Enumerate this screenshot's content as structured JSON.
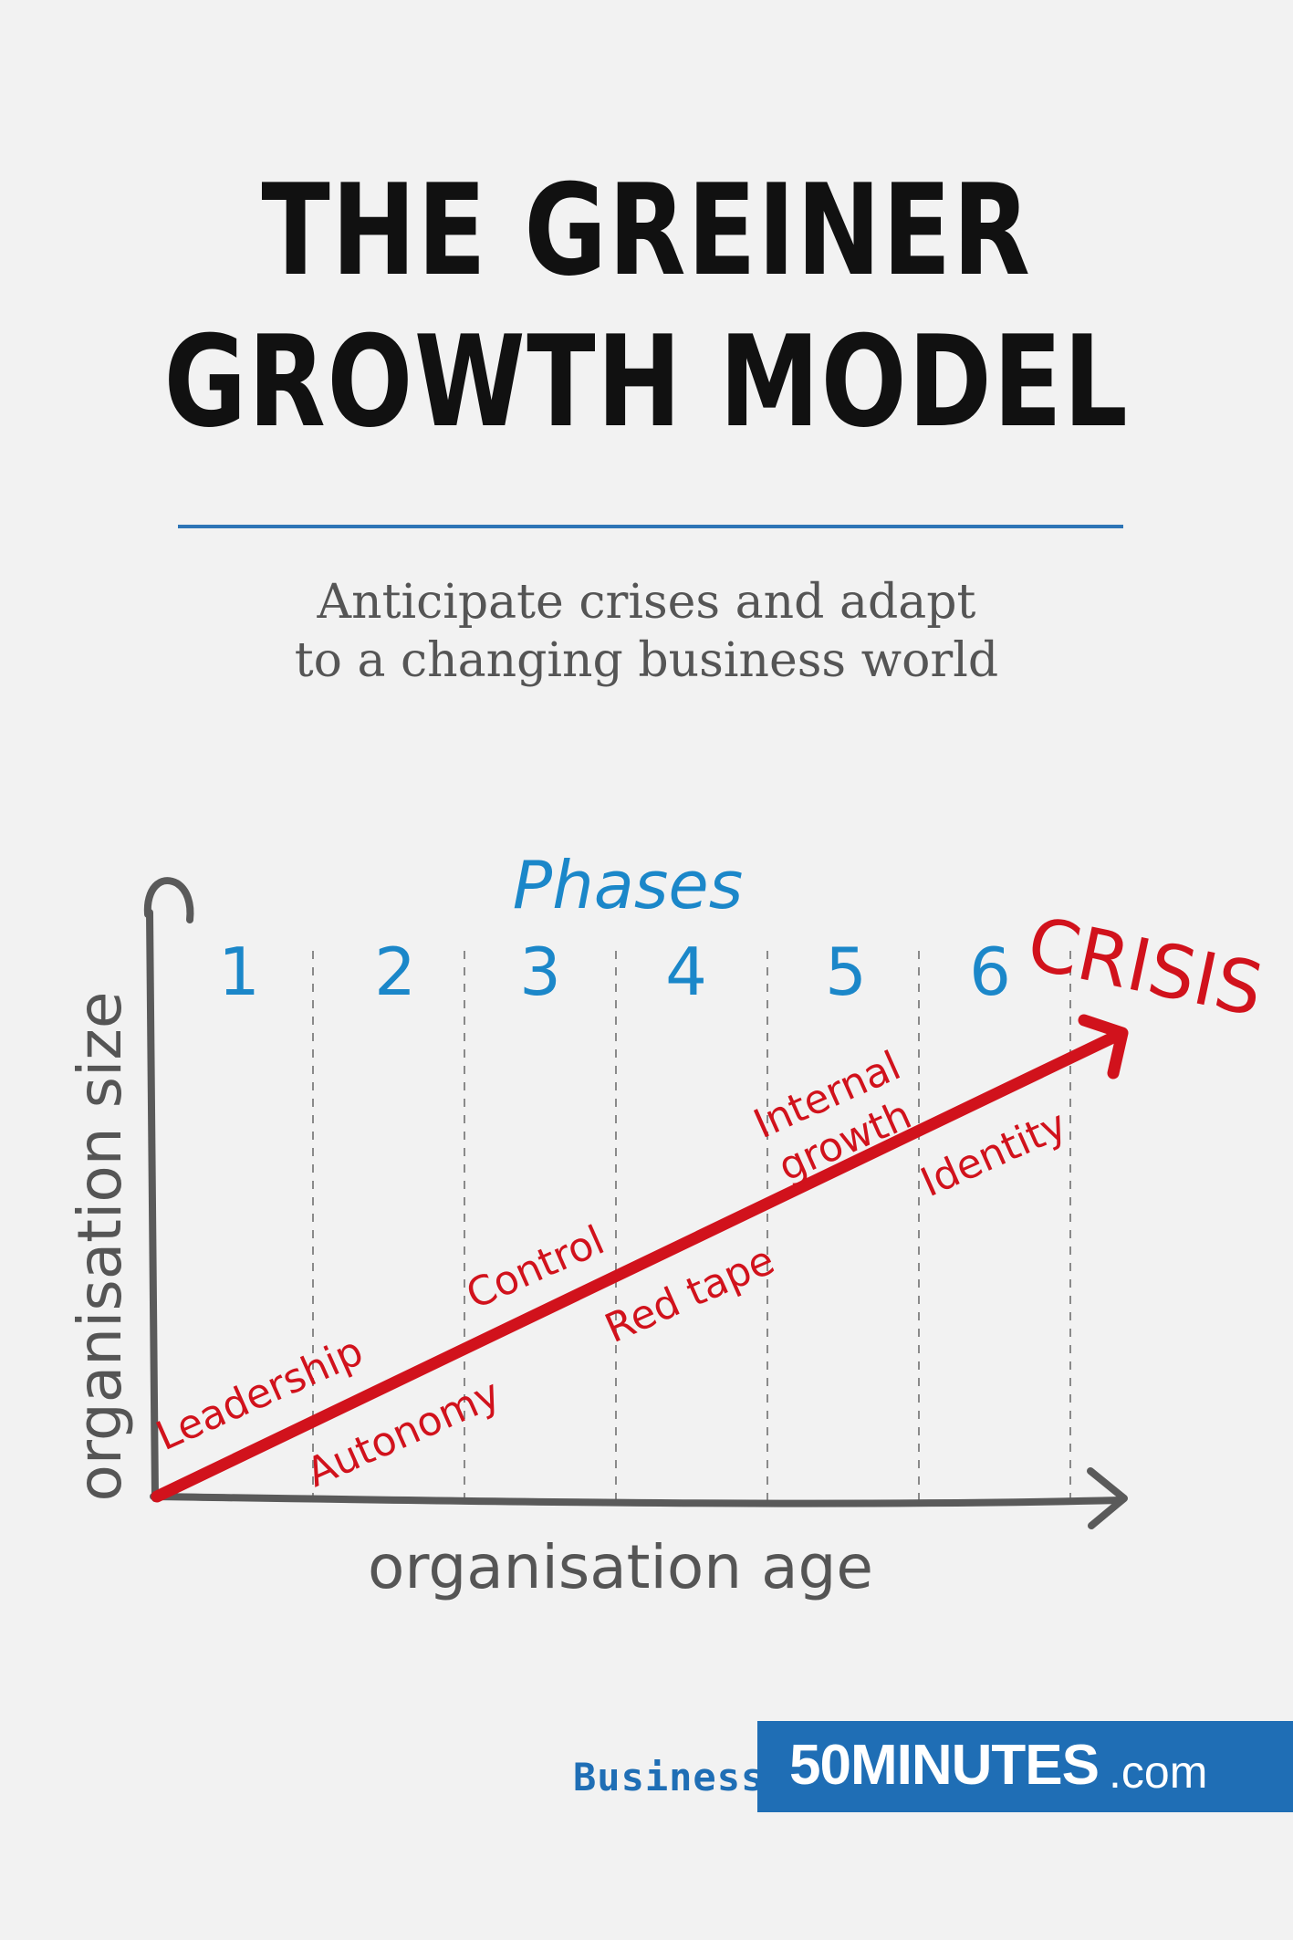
{
  "title": {
    "line1": "THE GREINER",
    "line2": "GROWTH MODEL"
  },
  "subtitle": {
    "line1": "Anticipate crises and adapt",
    "line2": "to a changing business world"
  },
  "diagram": {
    "phases_label": "Phases",
    "phase_numbers": [
      "1",
      "2",
      "3",
      "4",
      "5",
      "6"
    ],
    "y_axis_label": "organisation size",
    "x_axis_label": "organisation age",
    "crisis_label": "CRISIS",
    "stage_labels": {
      "leadership": "Leadership",
      "autonomy": "Autonomy",
      "control": "Control",
      "red_tape": "Red tape",
      "internal_line1": "Internal",
      "internal_line2": "growth",
      "identity": "Identity"
    },
    "colors": {
      "axis": "#555555",
      "phase_numbers": "#1b87c9",
      "crisis": "#d1121c",
      "divider": "#8a8a8a"
    }
  },
  "footer": {
    "category": "Business",
    "brand_main": "50MINUTES",
    "brand_suffix": ".com"
  }
}
